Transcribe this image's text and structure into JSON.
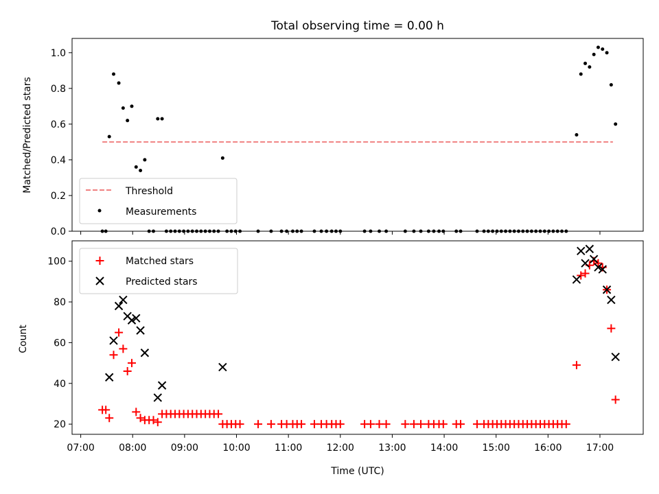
{
  "chart_data": {
    "title": "Total observing time = 0.00 h",
    "xlabel": "Time (UTC)",
    "x_ticks": [
      "07:00",
      "08:00",
      "09:00",
      "10:00",
      "11:00",
      "12:00",
      "13:00",
      "14:00",
      "15:00",
      "16:00",
      "17:00"
    ],
    "xlim": [
      "06:50",
      "17:50"
    ],
    "colors": {
      "threshold": "#f08080",
      "measurements": "#000000",
      "matched": "#ff0000",
      "predicted": "#000000"
    },
    "panels": [
      {
        "type": "scatter",
        "ylabel": "Matched/Predicted stars",
        "ylim": [
          0,
          1.08
        ],
        "yticks": [
          "0.0",
          "0.2",
          "0.4",
          "0.6",
          "0.8",
          "1.0"
        ],
        "legend_position": "lower-left",
        "threshold": {
          "name": "Threshold",
          "y": 0.5,
          "x_range": [
            "07:25",
            "17:15"
          ]
        },
        "measurements": {
          "name": "Measurements",
          "points": [
            [
              "07:25",
              0
            ],
            [
              "07:29",
              0
            ],
            [
              "07:33",
              0.53
            ],
            [
              "07:38",
              0.88
            ],
            [
              "07:44",
              0.83
            ],
            [
              "07:49",
              0.69
            ],
            [
              "07:54",
              0.62
            ],
            [
              "07:59",
              0.7
            ],
            [
              "08:04",
              0.36
            ],
            [
              "08:09",
              0.34
            ],
            [
              "08:14",
              0.4
            ],
            [
              "08:19",
              0
            ],
            [
              "08:24",
              0
            ],
            [
              "08:29",
              0.63
            ],
            [
              "08:34",
              0.63
            ],
            [
              "08:39",
              0
            ],
            [
              "08:44",
              0
            ],
            [
              "08:49",
              0
            ],
            [
              "08:54",
              0
            ],
            [
              "08:59",
              0
            ],
            [
              "09:04",
              0
            ],
            [
              "09:09",
              0
            ],
            [
              "09:14",
              0
            ],
            [
              "09:19",
              0
            ],
            [
              "09:24",
              0
            ],
            [
              "09:29",
              0
            ],
            [
              "09:34",
              0
            ],
            [
              "09:39",
              0
            ],
            [
              "09:44",
              0.41
            ],
            [
              "09:49",
              0
            ],
            [
              "09:54",
              0
            ],
            [
              "09:59",
              0
            ],
            [
              "10:04",
              0
            ],
            [
              "10:25",
              0
            ],
            [
              "10:40",
              0
            ],
            [
              "10:52",
              0
            ],
            [
              "10:58",
              0
            ],
            [
              "11:05",
              0
            ],
            [
              "11:10",
              0
            ],
            [
              "11:15",
              0
            ],
            [
              "11:30",
              0
            ],
            [
              "11:38",
              0
            ],
            [
              "11:44",
              0
            ],
            [
              "11:50",
              0
            ],
            [
              "11:55",
              0
            ],
            [
              "12:00",
              0
            ],
            [
              "12:28",
              0
            ],
            [
              "12:35",
              0
            ],
            [
              "12:45",
              0
            ],
            [
              "12:53",
              0
            ],
            [
              "13:15",
              0
            ],
            [
              "13:25",
              0
            ],
            [
              "13:33",
              0
            ],
            [
              "13:42",
              0
            ],
            [
              "13:48",
              0
            ],
            [
              "13:54",
              0
            ],
            [
              "13:59",
              0
            ],
            [
              "14:14",
              0
            ],
            [
              "14:19",
              0
            ],
            [
              "14:38",
              0
            ],
            [
              "14:46",
              0
            ],
            [
              "14:51",
              0
            ],
            [
              "14:56",
              0
            ],
            [
              "15:01",
              0
            ],
            [
              "15:06",
              0
            ],
            [
              "15:11",
              0
            ],
            [
              "15:16",
              0
            ],
            [
              "15:21",
              0
            ],
            [
              "15:26",
              0
            ],
            [
              "15:31",
              0
            ],
            [
              "15:36",
              0
            ],
            [
              "15:41",
              0
            ],
            [
              "15:46",
              0
            ],
            [
              "15:51",
              0
            ],
            [
              "15:56",
              0
            ],
            [
              "16:01",
              0
            ],
            [
              "16:06",
              0
            ],
            [
              "16:11",
              0
            ],
            [
              "16:16",
              0
            ],
            [
              "16:21",
              0
            ],
            [
              "16:33",
              0.54
            ],
            [
              "16:38",
              0.88
            ],
            [
              "16:43",
              0.94
            ],
            [
              "16:48",
              0.92
            ],
            [
              "16:53",
              0.99
            ],
            [
              "16:58",
              1.03
            ],
            [
              "17:03",
              1.02
            ],
            [
              "17:08",
              1.0
            ],
            [
              "17:13",
              0.82
            ],
            [
              "17:18",
              0.6
            ]
          ]
        }
      },
      {
        "type": "scatter",
        "ylabel": "Count",
        "ylim": [
          15,
          110
        ],
        "yticks": [
          "20",
          "40",
          "60",
          "80",
          "100"
        ],
        "legend_position": "upper-left",
        "series": [
          {
            "name": "Matched stars",
            "marker": "+",
            "points": [
              [
                "07:25",
                27
              ],
              [
                "07:29",
                27
              ],
              [
                "07:33",
                23
              ],
              [
                "07:38",
                54
              ],
              [
                "07:44",
                65
              ],
              [
                "07:49",
                57
              ],
              [
                "07:54",
                46
              ],
              [
                "07:59",
                50
              ],
              [
                "08:04",
                26
              ],
              [
                "08:09",
                23
              ],
              [
                "08:14",
                22
              ],
              [
                "08:19",
                22
              ],
              [
                "08:24",
                22
              ],
              [
                "08:29",
                21
              ],
              [
                "08:34",
                25
              ],
              [
                "08:39",
                25
              ],
              [
                "08:44",
                25
              ],
              [
                "08:49",
                25
              ],
              [
                "08:54",
                25
              ],
              [
                "08:59",
                25
              ],
              [
                "09:04",
                25
              ],
              [
                "09:09",
                25
              ],
              [
                "09:14",
                25
              ],
              [
                "09:19",
                25
              ],
              [
                "09:24",
                25
              ],
              [
                "09:29",
                25
              ],
              [
                "09:34",
                25
              ],
              [
                "09:39",
                25
              ],
              [
                "09:44",
                20
              ],
              [
                "09:49",
                20
              ],
              [
                "09:54",
                20
              ],
              [
                "09:59",
                20
              ],
              [
                "10:04",
                20
              ],
              [
                "10:25",
                20
              ],
              [
                "10:40",
                20
              ],
              [
                "10:52",
                20
              ],
              [
                "10:58",
                20
              ],
              [
                "11:05",
                20
              ],
              [
                "11:10",
                20
              ],
              [
                "11:15",
                20
              ],
              [
                "11:30",
                20
              ],
              [
                "11:38",
                20
              ],
              [
                "11:44",
                20
              ],
              [
                "11:50",
                20
              ],
              [
                "11:55",
                20
              ],
              [
                "12:00",
                20
              ],
              [
                "12:28",
                20
              ],
              [
                "12:35",
                20
              ],
              [
                "12:45",
                20
              ],
              [
                "12:53",
                20
              ],
              [
                "13:15",
                20
              ],
              [
                "13:25",
                20
              ],
              [
                "13:33",
                20
              ],
              [
                "13:42",
                20
              ],
              [
                "13:48",
                20
              ],
              [
                "13:54",
                20
              ],
              [
                "13:59",
                20
              ],
              [
                "14:14",
                20
              ],
              [
                "14:19",
                20
              ],
              [
                "14:38",
                20
              ],
              [
                "14:46",
                20
              ],
              [
                "14:51",
                20
              ],
              [
                "14:56",
                20
              ],
              [
                "15:01",
                20
              ],
              [
                "15:06",
                20
              ],
              [
                "15:11",
                20
              ],
              [
                "15:16",
                20
              ],
              [
                "15:21",
                20
              ],
              [
                "15:26",
                20
              ],
              [
                "15:31",
                20
              ],
              [
                "15:36",
                20
              ],
              [
                "15:41",
                20
              ],
              [
                "15:46",
                20
              ],
              [
                "15:51",
                20
              ],
              [
                "15:56",
                20
              ],
              [
                "16:01",
                20
              ],
              [
                "16:06",
                20
              ],
              [
                "16:11",
                20
              ],
              [
                "16:16",
                20
              ],
              [
                "16:21",
                20
              ],
              [
                "16:33",
                49
              ],
              [
                "16:38",
                93
              ],
              [
                "16:43",
                94
              ],
              [
                "16:48",
                98
              ],
              [
                "16:53",
                100
              ],
              [
                "16:58",
                99
              ],
              [
                "17:03",
                97
              ],
              [
                "17:08",
                86
              ],
              [
                "17:13",
                67
              ],
              [
                "17:18",
                32
              ]
            ]
          },
          {
            "name": "Predicted stars",
            "marker": "x",
            "points": [
              [
                "07:33",
                43
              ],
              [
                "07:38",
                61
              ],
              [
                "07:44",
                78
              ],
              [
                "07:49",
                81
              ],
              [
                "07:54",
                73
              ],
              [
                "07:59",
                71
              ],
              [
                "08:04",
                72
              ],
              [
                "08:09",
                66
              ],
              [
                "08:14",
                55
              ],
              [
                "08:29",
                33
              ],
              [
                "08:34",
                39
              ],
              [
                "09:44",
                48
              ],
              [
                "16:33",
                91
              ],
              [
                "16:38",
                105
              ],
              [
                "16:43",
                99
              ],
              [
                "16:48",
                106
              ],
              [
                "16:53",
                101
              ],
              [
                "16:58",
                97
              ],
              [
                "17:03",
                96
              ],
              [
                "17:08",
                86
              ],
              [
                "17:13",
                81
              ],
              [
                "17:18",
                53
              ]
            ]
          }
        ]
      }
    ]
  }
}
